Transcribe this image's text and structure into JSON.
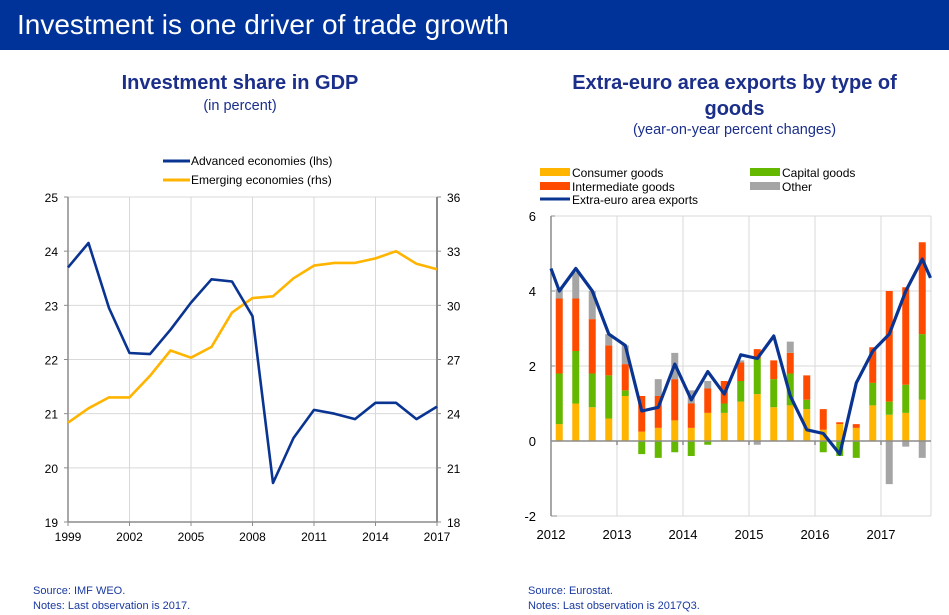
{
  "header": {
    "title": "Investment is one driver of trade growth"
  },
  "colors": {
    "header_bg": "#003399",
    "title_text": "#1a2e8a",
    "advanced": "#0a3491",
    "emerging": "#ffb400",
    "consumer": "#ffb400",
    "capital": "#65b800",
    "intermediate": "#ff4b00",
    "other": "#a5a5a5",
    "total": "#0a3491",
    "grid": "#d9d9d9",
    "axis": "#8c8c8c"
  },
  "left_panel": {
    "title": "Investment share in GDP",
    "subtitle": "(in percent)",
    "source": "Source: IMF WEO.",
    "notes": "Notes: Last observation is 2017."
  },
  "right_panel": {
    "title_line1": "Extra-euro area exports by type of",
    "title_line2": "goods",
    "subtitle": "(year-on-year percent changes)",
    "source": "Source: Eurostat.",
    "notes": "Notes: Last observation is 2017Q3."
  },
  "chart_data": [
    {
      "type": "line",
      "title": "Investment share in GDP",
      "subtitle": "(in percent)",
      "x": [
        1999,
        2000,
        2001,
        2002,
        2003,
        2004,
        2005,
        2006,
        2007,
        2008,
        2009,
        2010,
        2011,
        2012,
        2013,
        2014,
        2015,
        2016,
        2017
      ],
      "x_ticks": [
        "1999",
        "2002",
        "2005",
        "2008",
        "2011",
        "2014",
        "2017"
      ],
      "y_left": {
        "label": "lhs",
        "range": [
          19,
          25
        ],
        "ticks": [
          "19",
          "20",
          "21",
          "22",
          "23",
          "24",
          "25"
        ]
      },
      "y_right": {
        "label": "rhs",
        "range": [
          18,
          36
        ],
        "ticks": [
          "18",
          "21",
          "24",
          "27",
          "30",
          "33",
          "36"
        ]
      },
      "grid": true,
      "legend_position": "top-center",
      "series": [
        {
          "name": "Advanced economies (lhs)",
          "axis": "left",
          "values": [
            23.7,
            24.15,
            22.95,
            22.12,
            22.1,
            22.55,
            23.05,
            23.48,
            23.44,
            22.8,
            19.72,
            20.55,
            21.07,
            21.0,
            20.9,
            21.2,
            21.2,
            20.9,
            21.13
          ]
        },
        {
          "name": "Emerging economies (rhs)",
          "axis": "right",
          "values": [
            23.5,
            24.3,
            24.9,
            24.9,
            26.1,
            27.5,
            27.1,
            27.7,
            29.6,
            30.4,
            30.5,
            31.5,
            32.2,
            32.35,
            32.35,
            32.6,
            33.0,
            32.3,
            32.0
          ]
        }
      ]
    },
    {
      "type": "bar",
      "stacked": true,
      "title": "Extra-euro area exports by type of goods",
      "subtitle": "(year-on-year percent changes)",
      "x_ticks": [
        "2012",
        "2013",
        "2014",
        "2015",
        "2016",
        "2017"
      ],
      "y_range": [
        -2,
        6
      ],
      "y_ticks": [
        "-2",
        "0",
        "2",
        "4",
        "6"
      ],
      "grid": true,
      "legend_position": "top",
      "periods": [
        "2012Q1",
        "2012Q2",
        "2012Q3",
        "2012Q4",
        "2013Q1",
        "2013Q2",
        "2013Q3",
        "2013Q4",
        "2014Q1",
        "2014Q2",
        "2014Q3",
        "2014Q4",
        "2015Q1",
        "2015Q2",
        "2015Q3",
        "2015Q4",
        "2016Q1",
        "2016Q2",
        "2016Q3",
        "2016Q4",
        "2017Q1",
        "2017Q2",
        "2017Q3"
      ],
      "series": [
        {
          "name": "Consumer goods",
          "values": [
            0.45,
            1.0,
            0.9,
            0.6,
            1.2,
            0.25,
            0.35,
            0.55,
            0.35,
            0.75,
            0.75,
            1.05,
            1.25,
            0.9,
            0.95,
            0.85,
            0.3,
            0.45,
            0.35,
            0.95,
            0.7,
            0.75,
            1.1
          ]
        },
        {
          "name": "Capital goods",
          "values": [
            1.35,
            1.4,
            0.9,
            1.15,
            0.15,
            -0.35,
            -0.45,
            -0.3,
            -0.4,
            -0.1,
            0.25,
            0.55,
            0.95,
            0.75,
            0.85,
            0.25,
            -0.3,
            -0.4,
            -0.45,
            0.6,
            0.35,
            0.75,
            1.75
          ]
        },
        {
          "name": "Intermediate goods",
          "values": [
            2.0,
            1.4,
            1.45,
            0.8,
            0.7,
            0.95,
            0.85,
            1.1,
            0.65,
            0.65,
            0.6,
            0.5,
            0.25,
            0.5,
            0.55,
            0.65,
            0.55,
            0.05,
            0.1,
            0.95,
            2.95,
            2.6,
            2.45
          ]
        },
        {
          "name": "Other",
          "values": [
            0.25,
            0.7,
            0.75,
            0.3,
            0.5,
            0.0,
            0.45,
            0.7,
            0.35,
            0.2,
            0.0,
            0.05,
            -0.1,
            0.0,
            0.3,
            0.0,
            0.0,
            0.0,
            0.0,
            0.0,
            -1.15,
            -0.15,
            -0.45
          ]
        }
      ],
      "line": {
        "name": "Extra-euro area exports",
        "values": [
          4.6,
          4.0,
          4.6,
          4.0,
          2.85,
          2.55,
          0.8,
          0.9,
          2.05,
          1.1,
          1.85,
          1.25,
          2.3,
          2.2,
          2.8,
          1.2,
          0.3,
          0.2,
          -0.35,
          1.55,
          2.4,
          2.85,
          4.0,
          4.85,
          4.35
        ]
      },
      "line_x": [
        2011.875,
        2012.125,
        2012.375,
        2012.625,
        2012.875,
        2013.125,
        2013.375,
        2013.625,
        2013.875,
        2014.125,
        2014.375,
        2014.625,
        2014.875,
        2015.125,
        2015.375,
        2015.625,
        2015.875,
        2016.125,
        2016.375,
        2016.625,
        2016.875,
        2017.125,
        2017.375,
        2017.625,
        2017.75
      ],
      "bar_x": [
        2012.125,
        2012.375,
        2012.625,
        2012.875,
        2013.125,
        2013.375,
        2013.625,
        2013.875,
        2014.125,
        2014.375,
        2014.625,
        2014.875,
        2015.125,
        2015.375,
        2015.625,
        2015.875,
        2016.125,
        2016.375,
        2016.625,
        2016.875,
        2017.125,
        2017.375,
        2017.625
      ]
    }
  ]
}
